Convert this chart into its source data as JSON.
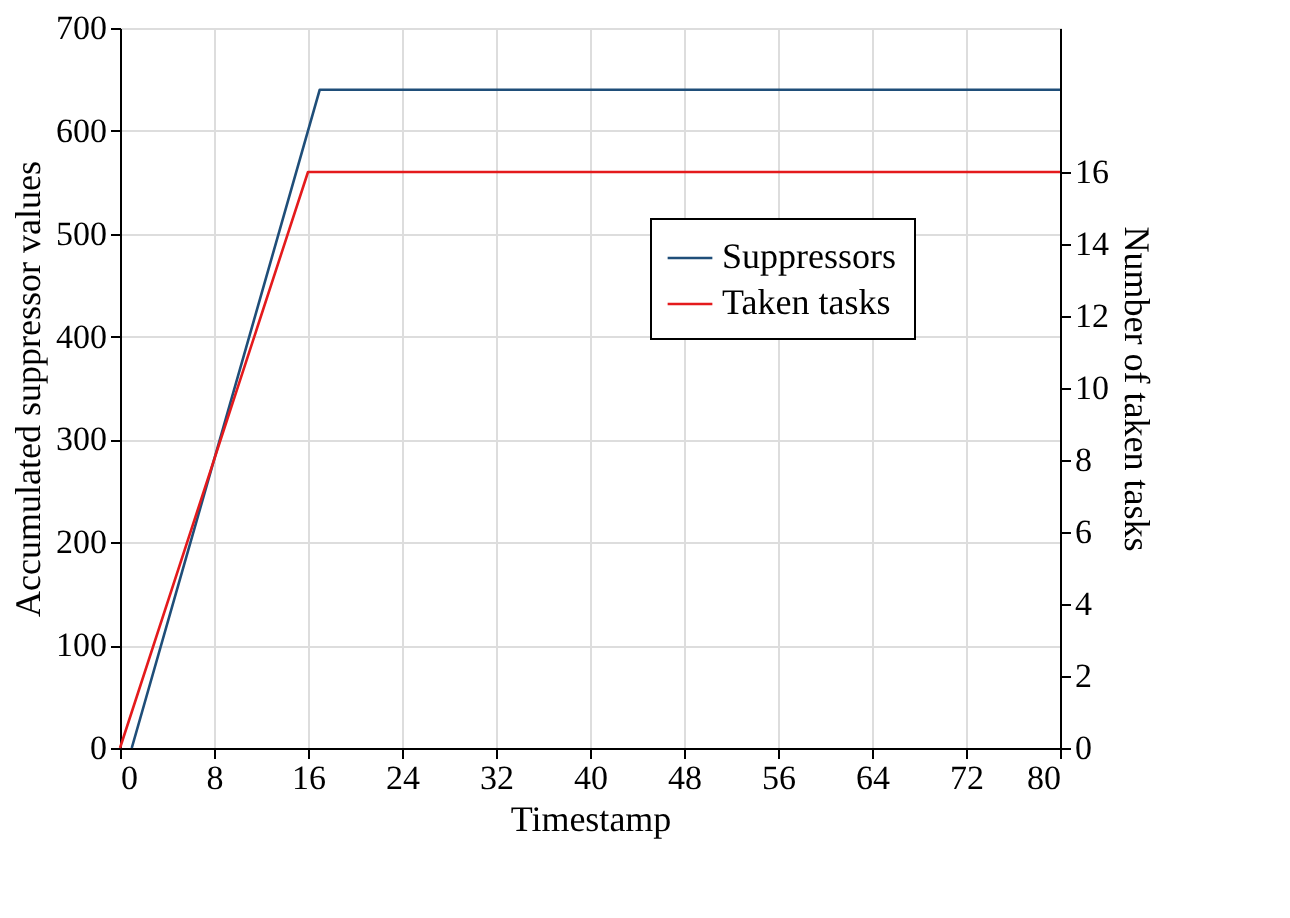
{
  "chart_data": {
    "type": "line",
    "xlabel": "Timestamp",
    "ylabel": "Accumulated suppressor values",
    "y2label": "Number of taken tasks",
    "xlim": [
      0,
      80
    ],
    "xticks": [
      0,
      8,
      16,
      24,
      32,
      40,
      48,
      56,
      64,
      72,
      80
    ],
    "ylim": [
      0,
      700
    ],
    "yticks": [
      0,
      100,
      200,
      300,
      400,
      500,
      600,
      700
    ],
    "y2lim": [
      0,
      20
    ],
    "y2ticks": [
      0,
      2,
      4,
      6,
      8,
      10,
      12,
      14,
      16
    ],
    "series": [
      {
        "name": "Suppressors",
        "color": "#1f4e79",
        "x": [
          1,
          17,
          80
        ],
        "values": [
          0,
          640,
          640
        ]
      },
      {
        "name": "Taken tasks",
        "color": "#e41a1c",
        "axis": "y2",
        "x": [
          0,
          16,
          80
        ],
        "values": [
          0,
          16,
          16
        ]
      }
    ],
    "grid": true,
    "legend": "top right",
    "marker": "none",
    "line_style": "solid"
  }
}
